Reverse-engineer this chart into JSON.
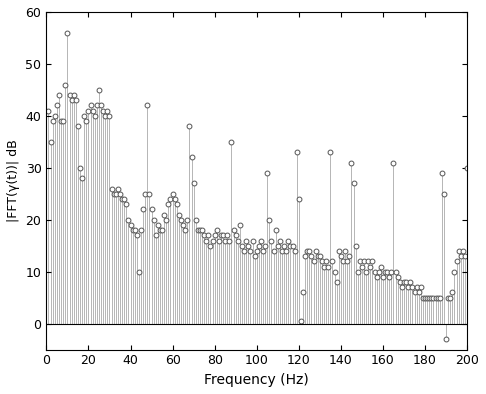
{
  "xlabel": "Frequency (Hz)",
  "ylabel": "|FFT(γ(t))| dB",
  "xlim": [
    0,
    200
  ],
  "ylim": [
    -5,
    60
  ],
  "yticks": [
    0,
    10,
    20,
    30,
    40,
    50,
    60
  ],
  "xticks": [
    0,
    20,
    40,
    60,
    80,
    100,
    120,
    140,
    160,
    180,
    200
  ],
  "stem_color": "#aaaaaa",
  "marker_face": "#ffffff",
  "marker_edge": "#555555",
  "figsize": [
    4.86,
    3.94
  ],
  "dpi": 100
}
